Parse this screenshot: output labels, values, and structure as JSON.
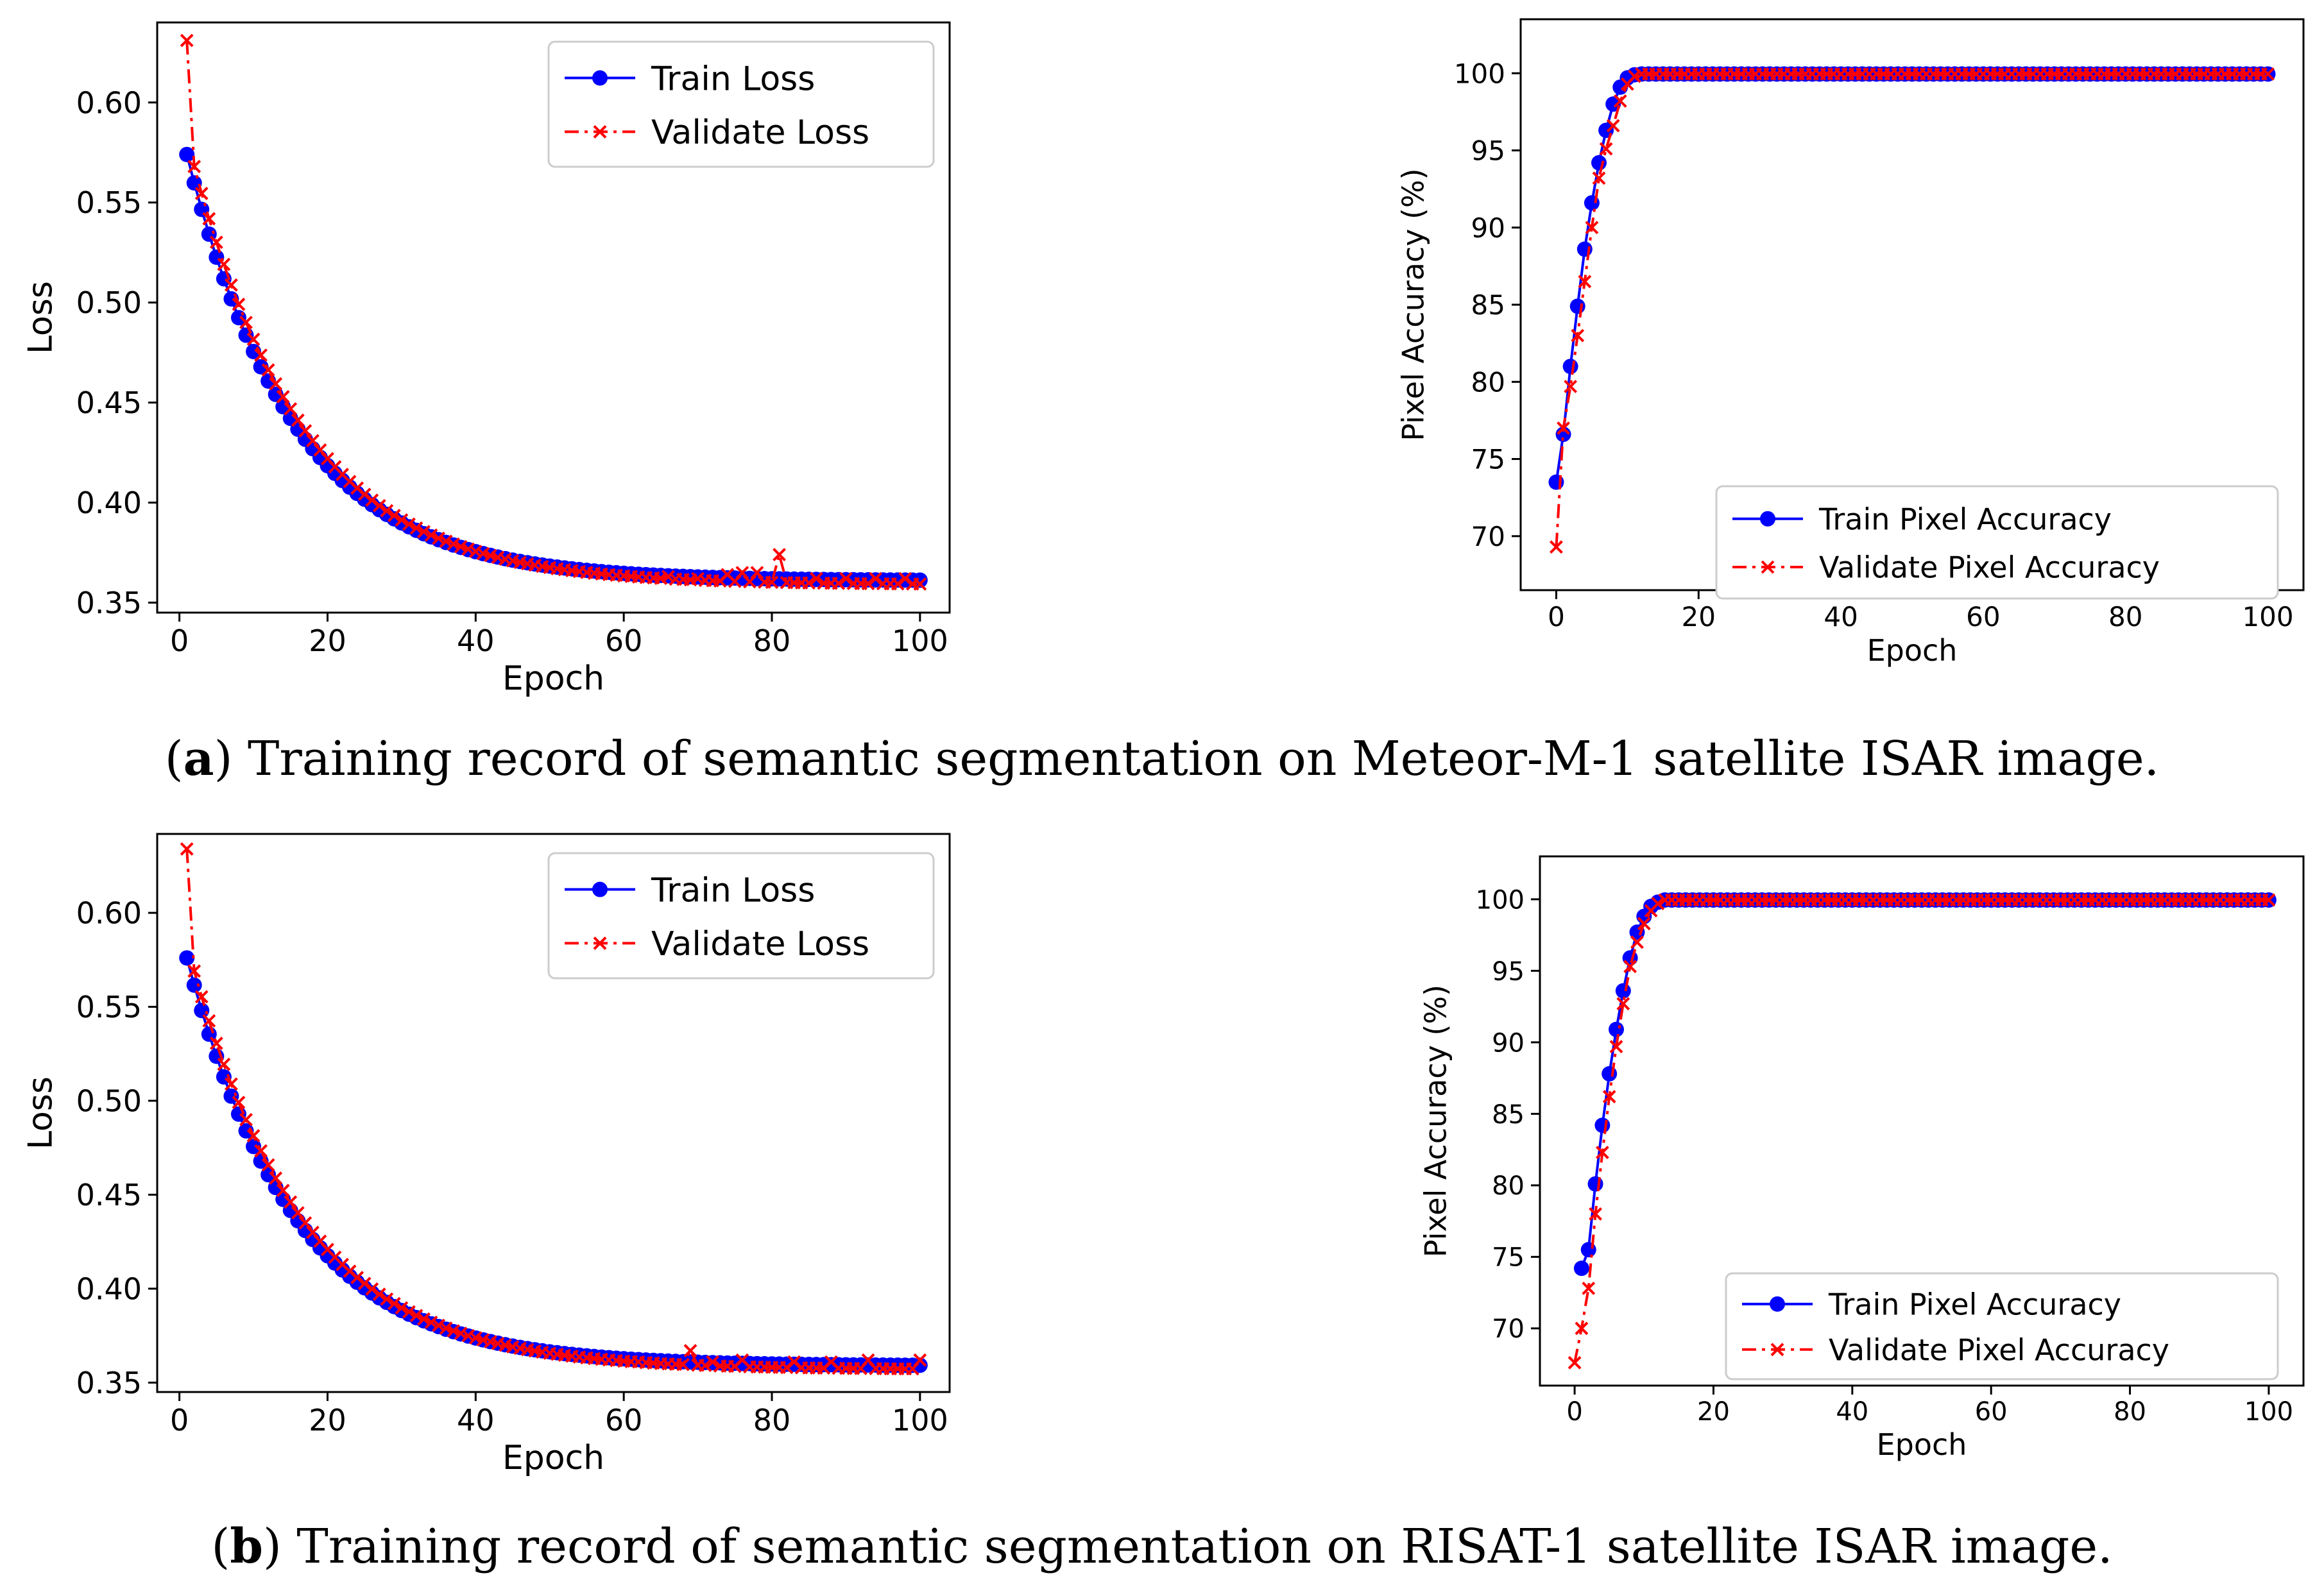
{
  "captions": {
    "a_letter": "a",
    "a_text": "Training record of semantic segmentation on Meteor-M-1 satellite ISAR image.",
    "b_letter": "b",
    "b_text": "Training record of semantic segmentation on RISAT-1 satellite ISAR image."
  },
  "colors": {
    "train": "#0000ff",
    "validate": "#ff0000"
  },
  "chart_data": [
    {
      "type": "line",
      "title": "",
      "xlabel": "Epoch",
      "ylabel": "Loss",
      "xlim": [
        -3,
        104
      ],
      "ylim": [
        0.345,
        0.64
      ],
      "xticks": [
        0,
        20,
        40,
        60,
        80,
        100
      ],
      "yticks": [
        0.35,
        0.4,
        0.45,
        0.5,
        0.55,
        0.6
      ],
      "ytick_labels": [
        "0.35",
        "0.40",
        "0.45",
        "0.50",
        "0.55",
        "0.60"
      ],
      "legend": {
        "position": "top-right",
        "entries": [
          "Train Loss",
          "Validate Loss"
        ]
      },
      "series": [
        {
          "name": "Train Loss",
          "model": "exp",
          "start": 0.574,
          "asymptote": 0.361,
          "tau": 14.5,
          "x_from": 1,
          "x_to": 100
        },
        {
          "name": "Validate Loss",
          "model": "exp",
          "start": 0.631,
          "second": 0.568,
          "asymptote": 0.359,
          "tau": 15.0,
          "x_from": 1,
          "x_to": 100,
          "spikes": [
            [
              66,
              0.363
            ],
            [
              70,
              0.362
            ],
            [
              74,
              0.364
            ],
            [
              76,
              0.365
            ],
            [
              78,
              0.365
            ],
            [
              81,
              0.374
            ],
            [
              86,
              0.362
            ],
            [
              90,
              0.362
            ],
            [
              94,
              0.362
            ],
            [
              98,
              0.362
            ]
          ]
        }
      ]
    },
    {
      "type": "line",
      "title": "",
      "xlabel": "Epoch",
      "ylabel": "Pixel Accuracy (%)",
      "xlim": [
        -5,
        105
      ],
      "ylim": [
        66.5,
        103.5
      ],
      "xticks": [
        0,
        20,
        40,
        60,
        80,
        100
      ],
      "yticks": [
        70,
        75,
        80,
        85,
        90,
        95,
        100
      ],
      "ytick_labels": [
        "70",
        "75",
        "80",
        "85",
        "90",
        "95",
        "100"
      ],
      "legend": {
        "position": "bottom-right",
        "entries": [
          "Train Pixel Accuracy",
          "Validate Pixel Accuracy"
        ]
      },
      "series": [
        {
          "name": "Train Pixel Accuracy",
          "model": "points",
          "x_from": 0,
          "x_to": 100,
          "points": [
            [
              0,
              73.5
            ],
            [
              1,
              76.6
            ],
            [
              2,
              81.0
            ],
            [
              3,
              84.9
            ],
            [
              4,
              88.6
            ],
            [
              5,
              91.6
            ],
            [
              6,
              94.2
            ],
            [
              7,
              96.3
            ],
            [
              8,
              98.0
            ],
            [
              9,
              99.1
            ],
            [
              10,
              99.7
            ],
            [
              11,
              99.9
            ]
          ],
          "plateau": 99.95
        },
        {
          "name": "Validate Pixel Accuracy",
          "model": "points",
          "x_from": 0,
          "x_to": 100,
          "points": [
            [
              0,
              69.3
            ],
            [
              1,
              77.0
            ],
            [
              2,
              79.7
            ],
            [
              3,
              83.0
            ],
            [
              4,
              86.5
            ],
            [
              5,
              90.0
            ],
            [
              6,
              93.2
            ],
            [
              7,
              95.1
            ],
            [
              8,
              96.6
            ],
            [
              9,
              98.2
            ],
            [
              10,
              99.3
            ],
            [
              11,
              99.8
            ]
          ],
          "plateau": 99.95
        }
      ]
    },
    {
      "type": "line",
      "title": "",
      "xlabel": "Epoch",
      "ylabel": "Loss",
      "xlim": [
        -3,
        104
      ],
      "ylim": [
        0.345,
        0.642
      ],
      "xticks": [
        0,
        20,
        40,
        60,
        80,
        100
      ],
      "yticks": [
        0.35,
        0.4,
        0.45,
        0.5,
        0.55,
        0.6
      ],
      "ytick_labels": [
        "0.35",
        "0.40",
        "0.45",
        "0.50",
        "0.55",
        "0.60"
      ],
      "legend": {
        "position": "top-right",
        "entries": [
          "Train Loss",
          "Validate Loss"
        ]
      },
      "series": [
        {
          "name": "Train Loss",
          "model": "exp",
          "start": 0.576,
          "asymptote": 0.359,
          "tau": 14.5,
          "x_from": 1,
          "x_to": 100
        },
        {
          "name": "Validate Loss",
          "model": "exp",
          "start": 0.634,
          "second": 0.569,
          "asymptote": 0.357,
          "tau": 15.0,
          "x_from": 1,
          "x_to": 100,
          "spikes": [
            [
              62,
              0.361
            ],
            [
              69,
              0.367
            ],
            [
              72,
              0.361
            ],
            [
              76,
              0.362
            ],
            [
              83,
              0.361
            ],
            [
              88,
              0.361
            ],
            [
              93,
              0.362
            ],
            [
              100,
              0.362
            ]
          ]
        }
      ]
    },
    {
      "type": "line",
      "title": "",
      "xlabel": "Epoch",
      "ylabel": "Pixel Accuracy (%)",
      "xlim": [
        -5,
        105
      ],
      "ylim": [
        66.0,
        103.0
      ],
      "xticks": [
        0,
        20,
        40,
        60,
        80,
        100
      ],
      "yticks": [
        70,
        75,
        80,
        85,
        90,
        95,
        100
      ],
      "ytick_labels": [
        "70",
        "75",
        "80",
        "85",
        "90",
        "95",
        "100"
      ],
      "legend": {
        "position": "bottom-right",
        "entries": [
          "Train Pixel Accuracy",
          "Validate Pixel Accuracy"
        ]
      },
      "series": [
        {
          "name": "Train Pixel Accuracy",
          "model": "points",
          "x_from": 1,
          "x_to": 100,
          "points": [
            [
              1,
              74.2
            ],
            [
              2,
              75.5
            ],
            [
              3,
              80.1
            ],
            [
              4,
              84.2
            ],
            [
              5,
              87.8
            ],
            [
              6,
              90.9
            ],
            [
              7,
              93.6
            ],
            [
              8,
              95.9
            ],
            [
              9,
              97.7
            ],
            [
              10,
              98.8
            ],
            [
              11,
              99.5
            ],
            [
              12,
              99.8
            ]
          ],
          "plateau": 99.95
        },
        {
          "name": "Validate Pixel Accuracy",
          "model": "points",
          "x_from": 0,
          "x_to": 100,
          "points": [
            [
              0,
              67.6
            ],
            [
              1,
              70.0
            ],
            [
              2,
              72.8
            ],
            [
              3,
              78.0
            ],
            [
              4,
              82.3
            ],
            [
              5,
              86.2
            ],
            [
              6,
              89.7
            ],
            [
              7,
              92.7
            ],
            [
              8,
              95.3
            ],
            [
              9,
              97.0
            ],
            [
              10,
              98.3
            ],
            [
              11,
              99.2
            ],
            [
              12,
              99.7
            ]
          ],
          "plateau": 99.95
        }
      ]
    }
  ]
}
